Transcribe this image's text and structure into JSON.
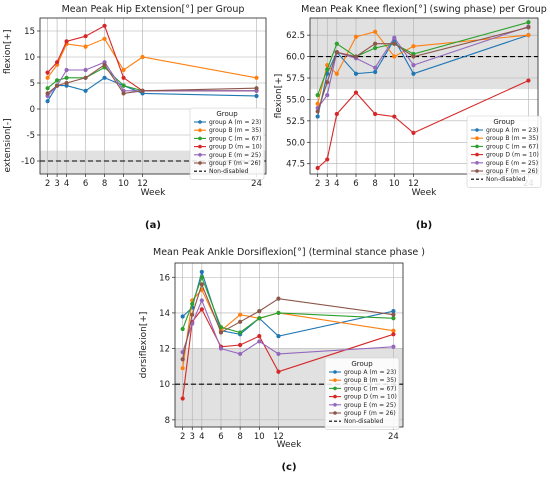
{
  "captions": [
    "(a)",
    "(b)",
    "(c)"
  ],
  "legend_title": "Group",
  "chart_data": [
    {
      "type": "line",
      "title": "Mean Peak Hip Extension[°] per Group",
      "xlabel": "Week",
      "ylabel_top": "flexion[+]",
      "ylabel_bottom": "extension[-]",
      "caption": "(a)",
      "x": [
        2,
        3,
        4,
        6,
        8,
        10,
        12,
        24
      ],
      "xlim": [
        1.2,
        25
      ],
      "ylim": [
        -12.5,
        17.5
      ],
      "yticks": [
        -10,
        -5,
        0,
        5,
        10,
        15
      ],
      "reference": {
        "name": "Non-disabled",
        "value": -10,
        "band": [
          -12.5,
          -8
        ]
      },
      "legend_position": "lower-right",
      "series": [
        {
          "name": "group A (m = 23)",
          "color": "#1f77b4",
          "values": [
            1.5,
            4.5,
            4.5,
            3.5,
            6.0,
            4.5,
            3.0,
            2.5
          ]
        },
        {
          "name": "group B (m = 35)",
          "color": "#ff7f0e",
          "values": [
            6.0,
            8.5,
            12.5,
            12.0,
            13.5,
            7.5,
            10.0,
            6.0
          ]
        },
        {
          "name": "group C (m = 67)",
          "color": "#2ca02c",
          "values": [
            4.0,
            5.5,
            6.0,
            6.0,
            8.0,
            4.5,
            3.5,
            3.5
          ]
        },
        {
          "name": "group D (m = 10)",
          "color": "#d62728",
          "values": [
            7.0,
            9.0,
            13.0,
            14.0,
            16.0,
            6.0,
            3.5,
            3.5
          ]
        },
        {
          "name": "group E (m = 25)",
          "color": "#9467bd",
          "values": [
            2.5,
            4.5,
            7.5,
            7.5,
            9.0,
            3.5,
            3.5,
            3.5
          ]
        },
        {
          "name": "group F (m = 26)",
          "color": "#8c564b",
          "values": [
            3.0,
            4.5,
            5.0,
            6.0,
            8.5,
            3.0,
            3.5,
            4.0
          ]
        }
      ]
    },
    {
      "type": "line",
      "title": "Mean Peak Knee flexion[°] (swing phase) per Group",
      "xlabel": "Week",
      "ylabel": "flexion[+]",
      "caption": "(b)",
      "x": [
        2,
        3,
        4,
        6,
        8,
        10,
        12,
        24
      ],
      "xlim": [
        1.2,
        25
      ],
      "ylim": [
        46.3,
        64.5
      ],
      "yticks": [
        47.5,
        50.0,
        52.5,
        55.0,
        57.5,
        60.0,
        62.5
      ],
      "reference": {
        "name": "Non-disabled",
        "value": 60.0,
        "band": [
          56.2,
          64.5
        ]
      },
      "legend_position": "lower-right",
      "series": [
        {
          "name": "group A (m = 23)",
          "color": "#1f77b4",
          "values": [
            53.0,
            58.0,
            60.5,
            58.0,
            58.2,
            62.0,
            58.0,
            62.5
          ]
        },
        {
          "name": "group B (m = 35)",
          "color": "#ff7f0e",
          "values": [
            54.5,
            59.0,
            58.0,
            62.3,
            62.9,
            60.0,
            61.2,
            62.5
          ]
        },
        {
          "name": "group C (m = 67)",
          "color": "#2ca02c",
          "values": [
            55.5,
            58.5,
            61.5,
            60.0,
            61.0,
            61.5,
            60.3,
            64.0
          ]
        },
        {
          "name": "group D (m = 10)",
          "color": "#d62728",
          "values": [
            47.0,
            48.0,
            53.3,
            55.8,
            53.3,
            53.0,
            51.1,
            57.2
          ]
        },
        {
          "name": "group E (m = 25)",
          "color": "#9467bd",
          "values": [
            54.0,
            55.5,
            60.5,
            59.8,
            58.7,
            62.2,
            59.0,
            63.5
          ]
        },
        {
          "name": "group F (m = 26)",
          "color": "#8c564b",
          "values": [
            53.6,
            57.0,
            60.5,
            60.0,
            61.5,
            61.5,
            60.0,
            63.4
          ]
        }
      ]
    },
    {
      "type": "line",
      "title": "Mean Peak Ankle Dorsiflexion[°] (terminal stance phase )",
      "xlabel": "Week",
      "ylabel": "dorsiflexion[+]",
      "caption": "(c)",
      "x": [
        2,
        3,
        4,
        6,
        8,
        10,
        12,
        24
      ],
      "xlim": [
        1.2,
        25
      ],
      "ylim": [
        7.6,
        16.8
      ],
      "yticks": [
        8,
        10,
        12,
        14,
        16
      ],
      "reference": {
        "name": "Non-disabled",
        "value": 10,
        "band": [
          7.6,
          12
        ]
      },
      "legend_position": "lower-right",
      "series": [
        {
          "name": "group A (m = 23)",
          "color": "#1f77b4",
          "values": [
            13.8,
            14.3,
            16.3,
            13.0,
            12.8,
            13.7,
            12.7,
            14.1
          ]
        },
        {
          "name": "group B (m = 35)",
          "color": "#ff7f0e",
          "values": [
            10.9,
            14.7,
            15.3,
            13.0,
            13.9,
            13.7,
            14.0,
            13.0
          ]
        },
        {
          "name": "group C (m = 67)",
          "color": "#2ca02c",
          "values": [
            13.1,
            14.5,
            16.0,
            13.2,
            12.9,
            13.7,
            14.0,
            13.7
          ]
        },
        {
          "name": "group D (m = 10)",
          "color": "#d62728",
          "values": [
            9.2,
            13.5,
            14.2,
            12.1,
            12.2,
            12.7,
            10.7,
            12.8
          ]
        },
        {
          "name": "group E (m = 25)",
          "color": "#9467bd",
          "values": [
            11.8,
            13.4,
            14.7,
            12.0,
            11.7,
            12.4,
            11.7,
            12.1
          ]
        },
        {
          "name": "group F (m = 26)",
          "color": "#8c564b",
          "values": [
            11.4,
            13.9,
            15.6,
            12.9,
            13.5,
            14.1,
            14.8,
            13.9
          ]
        }
      ]
    }
  ]
}
